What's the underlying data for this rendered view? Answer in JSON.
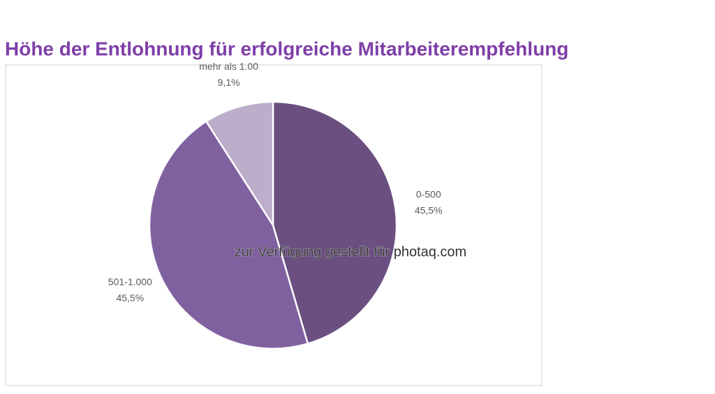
{
  "chart_data": {
    "type": "pie",
    "title": "Höhe der Entlohnung für erfolgreiche Mitarbeiterempfehlung",
    "categories": [
      "0-500",
      "501-1.000",
      "mehr als 1.00"
    ],
    "values": [
      45.5,
      45.5,
      9.1
    ],
    "value_labels": [
      "45,5%",
      "45,5%",
      "9,1%"
    ],
    "colors": [
      "#6a4f80",
      "#8061a0",
      "#bcadca"
    ],
    "annotation": "zur Verfügung gestellt für photaq.com"
  }
}
